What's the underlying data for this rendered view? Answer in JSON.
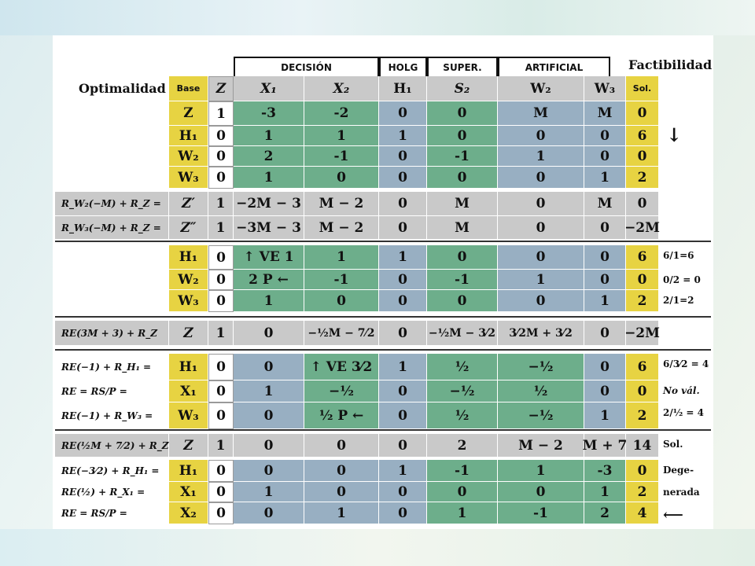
{
  "colors": {
    "yellow": "#e7d342",
    "green": "#6dae8b",
    "blue": "#98afc2",
    "gray": "#c9c9c9"
  },
  "headers": {
    "decision": "DECISIÓN",
    "holg": "HOLG",
    "super": "SUPER.",
    "artificial": "ARTIFICIAL",
    "factibilidad": "Factibilidad",
    "optimalidad": "Optimalidad",
    "arrow_right": "⟶",
    "arrow_down": "↓"
  },
  "columns": [
    "Base",
    "Z",
    "X₁",
    "X₂",
    "H₁",
    "S₂",
    "W₂",
    "W₃",
    "Sol."
  ],
  "rows": [
    {
      "label": "",
      "cells": [
        "Z",
        "1",
        "-3",
        "-2",
        "0",
        "0",
        "M",
        "M",
        "0"
      ],
      "colors": [
        "y",
        "w",
        "g",
        "g",
        "b",
        "g",
        "b",
        "b",
        "y"
      ],
      "side": ""
    },
    {
      "label": "",
      "cells": [
        "H₁",
        "0",
        "1",
        "1",
        "1",
        "0",
        "0",
        "0",
        "6"
      ],
      "colors": [
        "y",
        "w",
        "g",
        "g",
        "b",
        "g",
        "b",
        "b",
        "y"
      ],
      "side": ""
    },
    {
      "label": "",
      "cells": [
        "W₂",
        "0",
        "2",
        "-1",
        "0",
        "-1",
        "1",
        "0",
        "0"
      ],
      "colors": [
        "y",
        "w",
        "g",
        "g",
        "b",
        "g",
        "b",
        "b",
        "y"
      ],
      "side": ""
    },
    {
      "label": "",
      "cells": [
        "W₃",
        "0",
        "1",
        "0",
        "0",
        "0",
        "0",
        "1",
        "2"
      ],
      "colors": [
        "y",
        "w",
        "g",
        "g",
        "b",
        "g",
        "b",
        "b",
        "y"
      ],
      "side": ""
    },
    {
      "label": "R_W₂(−M) + R_Z =",
      "cells": [
        "Z′",
        "1",
        "−2M − 3",
        "M − 2",
        "0",
        "M",
        "0",
        "M",
        "0"
      ],
      "colors": [
        "gr",
        "gr",
        "gr",
        "gr",
        "gr",
        "gr",
        "gr",
        "gr",
        "gr"
      ],
      "side": ""
    },
    {
      "label": "R_W₃(−M) + R_Z =",
      "cells": [
        "Z″",
        "1",
        "−3M − 3",
        "M − 2",
        "0",
        "M",
        "0",
        "0",
        "−2M"
      ],
      "colors": [
        "gr",
        "gr",
        "gr",
        "gr",
        "gr",
        "gr",
        "gr",
        "gr",
        "gr"
      ],
      "side": ""
    },
    {
      "label": "",
      "cells": [
        "H₁",
        "0",
        "↑ VE 1",
        "1",
        "1",
        "0",
        "0",
        "0",
        "6"
      ],
      "colors": [
        "y",
        "w",
        "g",
        "g",
        "b",
        "g",
        "b",
        "b",
        "y"
      ],
      "side": "6/1=6"
    },
    {
      "label": "",
      "cells": [
        "W₂",
        "0",
        "2 P ←",
        "-1",
        "0",
        "-1",
        "1",
        "0",
        "0"
      ],
      "colors": [
        "y",
        "w",
        "g",
        "g",
        "b",
        "g",
        "b",
        "b",
        "y"
      ],
      "side": "0/2 = 0"
    },
    {
      "label": "",
      "cells": [
        "W₃",
        "0",
        "1",
        "0",
        "0",
        "0",
        "0",
        "1",
        "2"
      ],
      "colors": [
        "y",
        "w",
        "g",
        "g",
        "b",
        "g",
        "b",
        "b",
        "y"
      ],
      "side": "2/1=2"
    },
    {
      "label": "RE(3M + 3) + R_Z",
      "cells": [
        "Z",
        "1",
        "0",
        "−½M − 7⁄2",
        "0",
        "−½M − 3⁄2",
        "3⁄2M + 3⁄2",
        "0",
        "−2M"
      ],
      "colors": [
        "gr",
        "gr",
        "gr",
        "gr",
        "gr",
        "gr",
        "gr",
        "gr",
        "gr"
      ],
      "side": ""
    },
    {
      "label": "RE(−1) + R_H₁ =",
      "cells": [
        "H₁",
        "0",
        "0",
        "↑ VE 3⁄2",
        "1",
        "½",
        "−½",
        "0",
        "6"
      ],
      "colors": [
        "y",
        "w",
        "b",
        "g",
        "b",
        "g",
        "g",
        "b",
        "y"
      ],
      "side": "6/3⁄2 = 4"
    },
    {
      "label": "RE = RS/P =",
      "cells": [
        "X₁",
        "0",
        "1",
        "−½",
        "0",
        "−½",
        "½",
        "0",
        "0"
      ],
      "colors": [
        "y",
        "w",
        "b",
        "g",
        "b",
        "g",
        "g",
        "b",
        "y"
      ],
      "side": "No vál."
    },
    {
      "label": "RE(−1) + R_W₃ =",
      "cells": [
        "W₃",
        "0",
        "0",
        "½ P ←",
        "0",
        "½",
        "−½",
        "1",
        "2"
      ],
      "colors": [
        "y",
        "w",
        "b",
        "g",
        "b",
        "g",
        "g",
        "b",
        "y"
      ],
      "side": "2/½ = 4"
    },
    {
      "label": "RE(½M + 7⁄2) + R_Z =",
      "cells": [
        "Z",
        "1",
        "0",
        "0",
        "0",
        "2",
        "M − 2",
        "M + 7",
        "14"
      ],
      "colors": [
        "gr",
        "gr",
        "gr",
        "gr",
        "gr",
        "gr",
        "gr",
        "gr",
        "gr"
      ],
      "side": "Sol."
    },
    {
      "label": "RE(−3⁄2) + R_H₁ =",
      "cells": [
        "H₁",
        "0",
        "0",
        "0",
        "1",
        "-1",
        "1",
        "-3",
        "0"
      ],
      "colors": [
        "y",
        "w",
        "b",
        "b",
        "b",
        "g",
        "g",
        "g",
        "y"
      ],
      "side": "Dege-"
    },
    {
      "label": "RE(½) + R_X₁ =",
      "cells": [
        "X₁",
        "0",
        "1",
        "0",
        "0",
        "0",
        "0",
        "1",
        "2"
      ],
      "colors": [
        "y",
        "w",
        "b",
        "b",
        "b",
        "g",
        "g",
        "g",
        "y"
      ],
      "side": "nerada"
    },
    {
      "label": "RE = RS/P =",
      "cells": [
        "X₂",
        "0",
        "0",
        "1",
        "0",
        "1",
        "-1",
        "2",
        "4"
      ],
      "colors": [
        "y",
        "w",
        "b",
        "b",
        "b",
        "g",
        "g",
        "g",
        "y"
      ],
      "side": "⟵"
    }
  ]
}
